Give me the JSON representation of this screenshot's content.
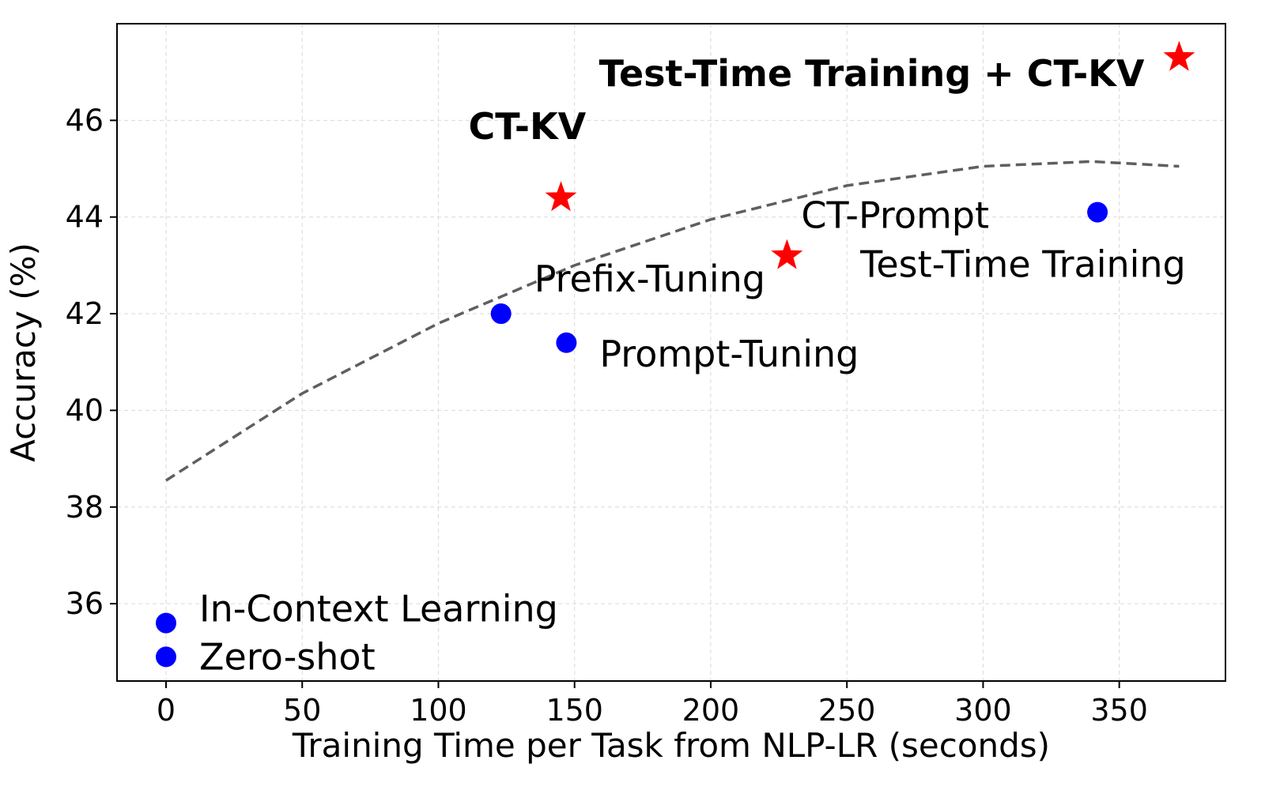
{
  "chart_data": {
    "type": "scatter",
    "title": "",
    "xlabel": "Training Time per Task from NLP-LR (seconds)",
    "ylabel": "Accuracy (%)",
    "xlim": [
      -18,
      389
    ],
    "ylim": [
      34.4,
      48.0
    ],
    "xticks": [
      0,
      50,
      100,
      150,
      200,
      250,
      300,
      350
    ],
    "yticks": [
      36,
      38,
      40,
      42,
      44,
      46
    ],
    "grid": true,
    "colors": {
      "baseline": "#0000ff",
      "ours": "#ff0000",
      "trend": "#5f5f5f"
    },
    "series": [
      {
        "marker": "circle",
        "color": "#0000ff",
        "points": [
          {
            "label": "Zero-shot",
            "x": 0,
            "y": 34.9
          },
          {
            "label": "In-Context Learning",
            "x": 0,
            "y": 35.6
          },
          {
            "label": "Prefix-Tuning",
            "x": 123,
            "y": 42.0
          },
          {
            "label": "Prompt-Tuning",
            "x": 147,
            "y": 41.4
          },
          {
            "label": "Test-Time Training",
            "x": 342,
            "y": 44.1
          }
        ]
      },
      {
        "marker": "star",
        "color": "#ff0000",
        "points": [
          {
            "label": "CT-KV",
            "x": 145,
            "y": 44.4,
            "bold": true
          },
          {
            "label": "CT-Prompt",
            "x": 228,
            "y": 43.2
          },
          {
            "label": "Test-Time Training + CT-KV",
            "x": 372,
            "y": 47.3,
            "bold": true
          }
        ]
      }
    ],
    "trend_line": {
      "style": "dashed",
      "points": [
        {
          "x": 0,
          "y": 38.55
        },
        {
          "x": 50,
          "y": 40.35
        },
        {
          "x": 100,
          "y": 41.8
        },
        {
          "x": 150,
          "y": 43.0
        },
        {
          "x": 200,
          "y": 43.95
        },
        {
          "x": 250,
          "y": 44.65
        },
        {
          "x": 300,
          "y": 45.05
        },
        {
          "x": 340,
          "y": 45.15
        },
        {
          "x": 372,
          "y": 45.05
        }
      ]
    }
  }
}
